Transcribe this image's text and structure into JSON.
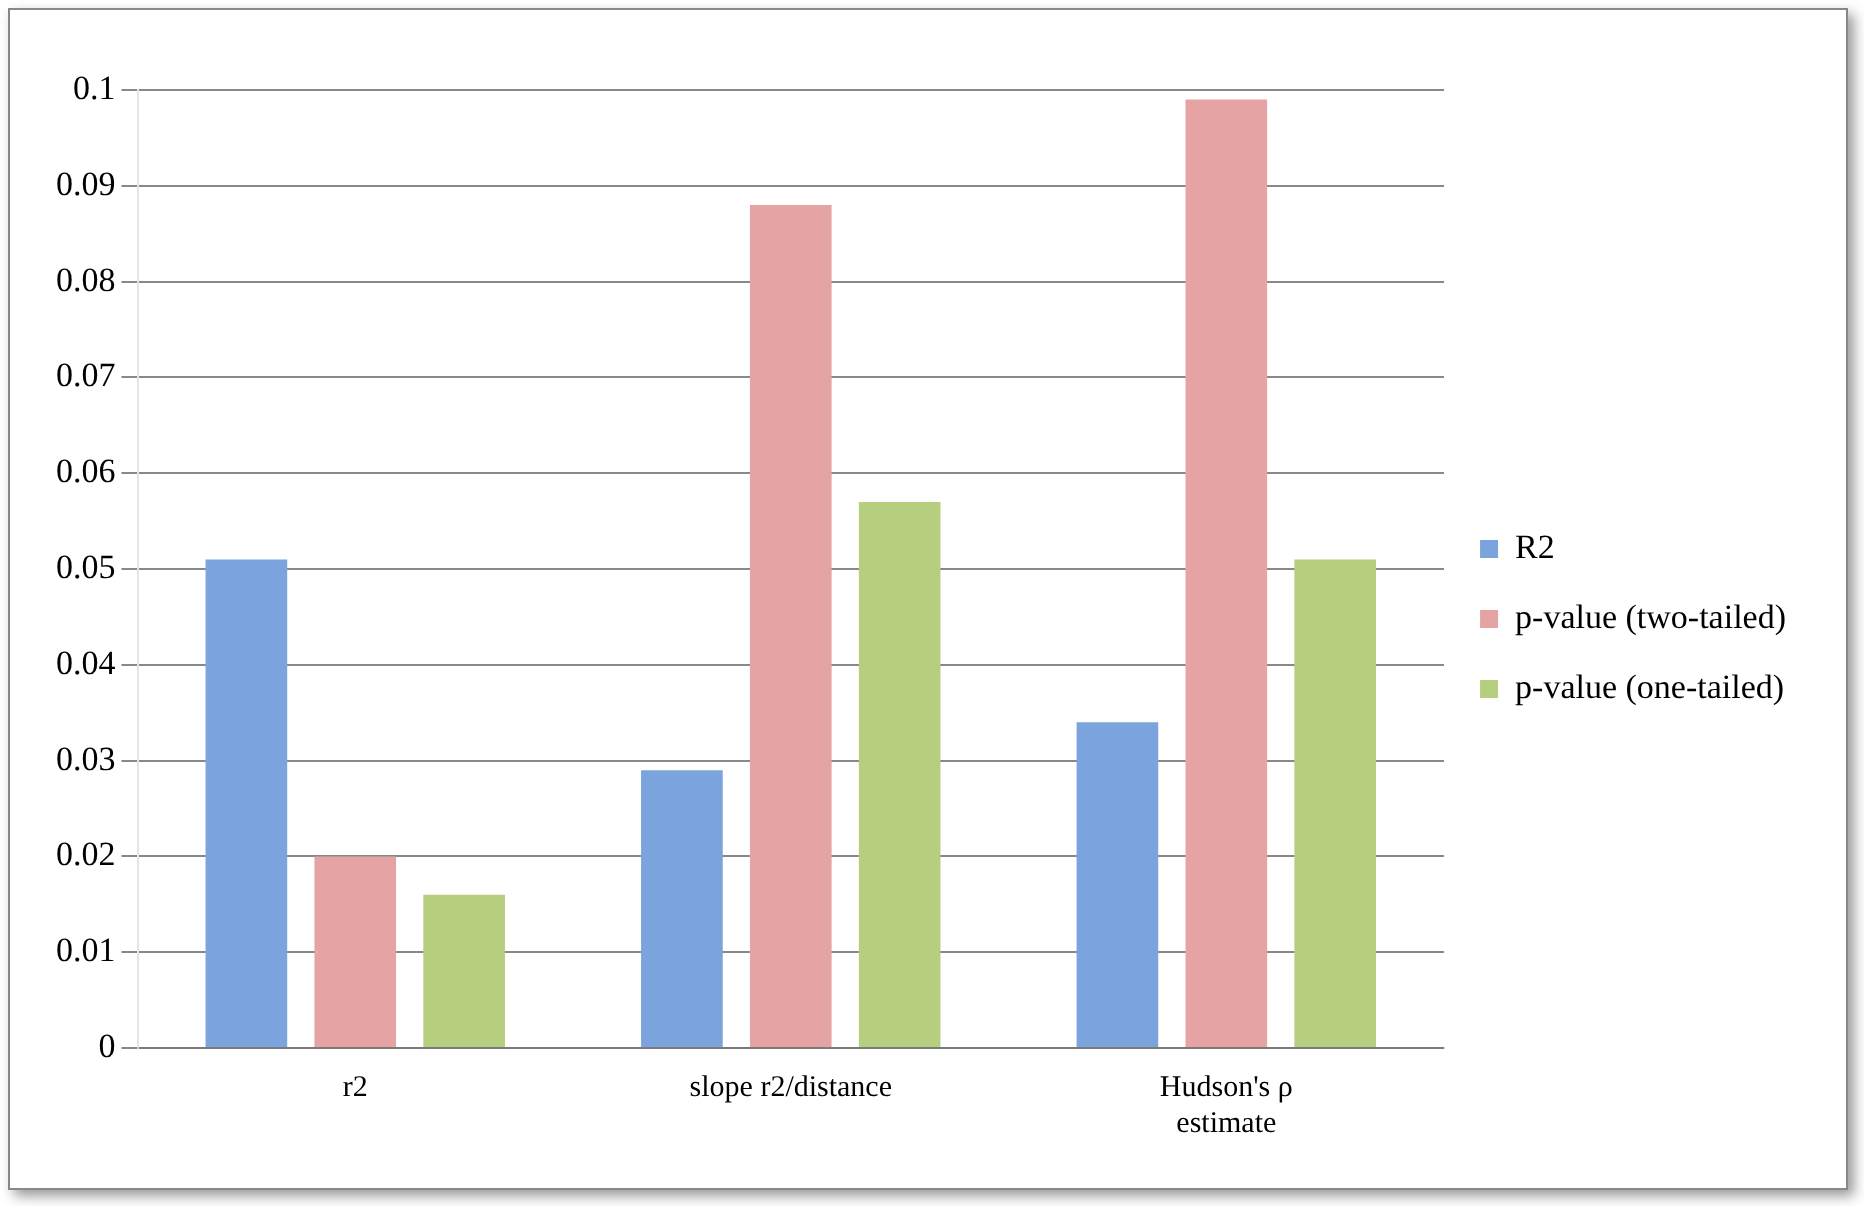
{
  "chart_data": {
    "type": "bar",
    "categories": [
      "r2",
      "slope r2/distance",
      "Hudson's ρ estimate"
    ],
    "series": [
      {
        "name": "R2",
        "color": "#7ba3dd",
        "values": [
          0.051,
          0.029,
          0.034
        ]
      },
      {
        "name": "p-value (two-tailed)",
        "color": "#e6a3a3",
        "values": [
          0.02,
          0.088,
          0.099
        ]
      },
      {
        "name": "p-value (one-tailed)",
        "color": "#b5cf7f",
        "values": [
          0.016,
          0.057,
          0.051
        ]
      }
    ],
    "ylim": [
      0,
      0.1
    ],
    "yticks": [
      0,
      0.01,
      0.02,
      0.03,
      0.04,
      0.05,
      0.06,
      0.07,
      0.08,
      0.09,
      0.1
    ],
    "grid": "y",
    "legend": "right"
  }
}
